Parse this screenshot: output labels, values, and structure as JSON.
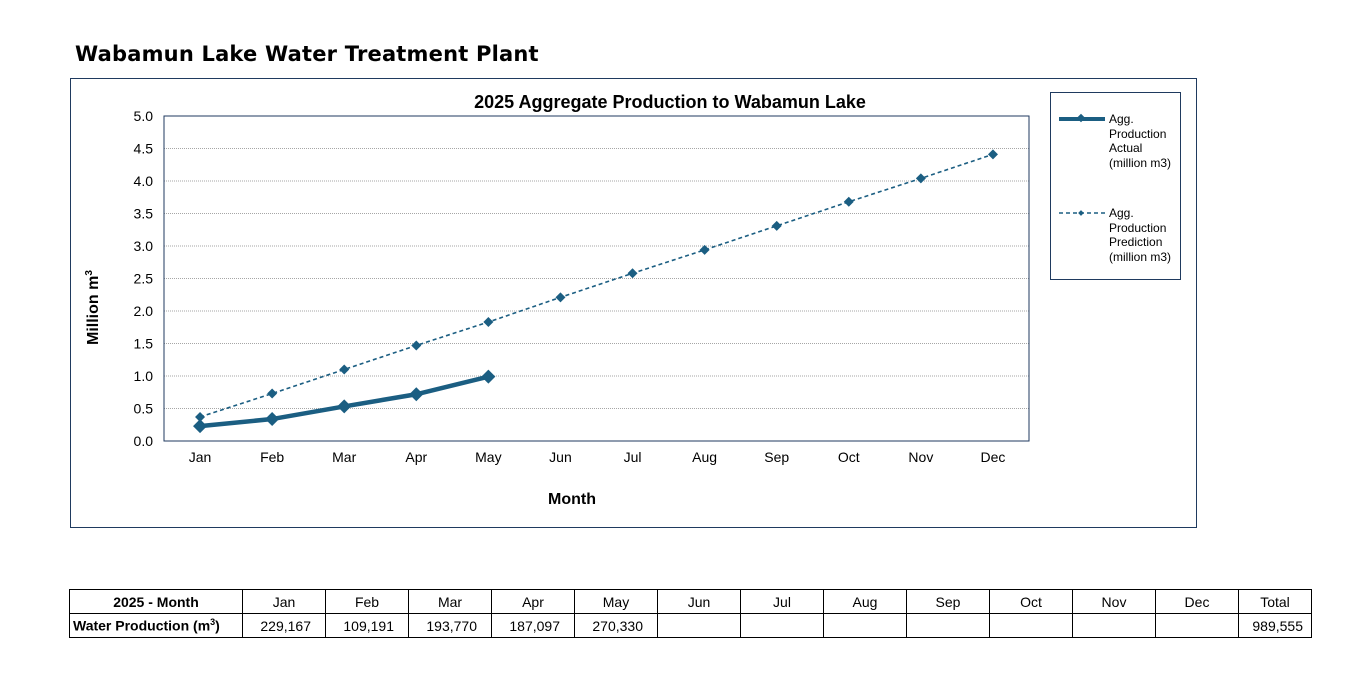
{
  "page_title": "Wabamun Lake Water Treatment Plant",
  "colors": {
    "series": "#1b5e82",
    "frame": "#1f3a5f",
    "grid": "#a6a6a6"
  },
  "chart_data": {
    "type": "line",
    "title": "2025 Aggregate Production to Wabamun Lake",
    "xlabel": "Month",
    "ylabel": "Million m",
    "ylabel_sup": "3",
    "categories": [
      "Jan",
      "Feb",
      "Mar",
      "Apr",
      "May",
      "Jun",
      "Jul",
      "Aug",
      "Sep",
      "Oct",
      "Nov",
      "Dec"
    ],
    "ylim": [
      0,
      5
    ],
    "yticks": [
      "0.0",
      "0.5",
      "1.0",
      "1.5",
      "2.0",
      "2.5",
      "3.0",
      "3.5",
      "4.0",
      "4.5",
      "5.0"
    ],
    "grid": true,
    "legend_position": "right",
    "series": [
      {
        "name": "Agg. Production Actual (million m3)",
        "legend_lines": [
          "Agg.",
          "Production",
          "Actual",
          "(million m3)"
        ],
        "style": "solid",
        "values": [
          0.229,
          0.338,
          0.532,
          0.719,
          0.99,
          null,
          null,
          null,
          null,
          null,
          null,
          null
        ]
      },
      {
        "name": "Agg. Production Prediction (million m3)",
        "legend_lines": [
          "Agg.",
          "Production",
          "Prediction",
          "(million m3)"
        ],
        "style": "dashed",
        "values": [
          0.37,
          0.73,
          1.1,
          1.47,
          1.83,
          2.21,
          2.58,
          2.94,
          3.31,
          3.68,
          4.04,
          4.41
        ]
      }
    ]
  },
  "table": {
    "row1_label": "2025 - Month",
    "row2_label": "Water Production (m",
    "row2_label_sup": "3",
    "row2_label_end": ")",
    "months": [
      "Jan",
      "Feb",
      "Mar",
      "Apr",
      "May",
      "Jun",
      "Jul",
      "Aug",
      "Sep",
      "Oct",
      "Nov",
      "Dec"
    ],
    "total_label": "Total",
    "values": [
      "229,167",
      "109,191",
      "193,770",
      "187,097",
      "270,330",
      "",
      "",
      "",
      "",
      "",
      "",
      ""
    ],
    "total_value": "989,555"
  }
}
